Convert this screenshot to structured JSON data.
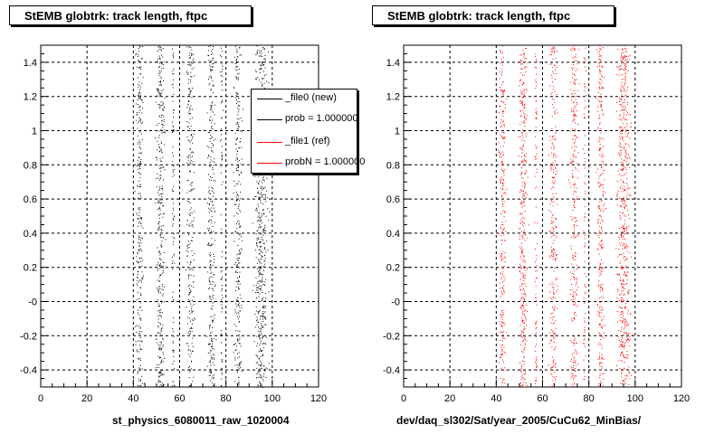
{
  "colors": {
    "file0": "#000000",
    "file1": "#ff0000",
    "grid": "#000000"
  },
  "chart_data": [
    {
      "type": "scatter",
      "title": "StEMB globtrk: track length, ftpc",
      "xlabel": "st_physics_6080011_raw_1020004",
      "ylabel": "",
      "xlim": [
        0,
        120
      ],
      "ylim": [
        -0.5,
        1.5
      ],
      "x_ticks": [
        "0",
        "20",
        "40",
        "60",
        "80",
        "100",
        "120"
      ],
      "y_ticks": [
        "-0.4",
        "-0.2",
        "-0",
        "0.2",
        "0.4",
        "0.6",
        "0.8",
        "1",
        "1.2",
        "1.4"
      ],
      "grid": true,
      "series": [
        {
          "color": "#000000",
          "bands": [
            {
              "x": 42.5,
              "width": 2.2,
              "density": 1.0
            },
            {
              "x": 51.5,
              "width": 2.6,
              "density": 1.4
            },
            {
              "x": 57.0,
              "width": 0.8,
              "density": 0.35
            },
            {
              "x": 64.5,
              "width": 2.4,
              "density": 1.0
            },
            {
              "x": 73.5,
              "width": 2.5,
              "density": 1.1
            },
            {
              "x": 78.0,
              "width": 0.7,
              "density": 0.3
            },
            {
              "x": 85.0,
              "width": 2.4,
              "density": 1.1
            },
            {
              "x": 95.0,
              "width": 4.0,
              "density": 2.2
            }
          ]
        }
      ],
      "legend": {
        "placement": "top-right",
        "entries": [
          {
            "label": "_file0 (new)",
            "color": "#000000"
          },
          {
            "label": "prob = 1.000000",
            "color": "#000000"
          },
          {
            "label": "_file1 (ref)",
            "color": "#ff0000"
          },
          {
            "label": "probN = 1.000000",
            "color": "#ff0000"
          }
        ]
      }
    },
    {
      "type": "scatter",
      "title": "StEMB globtrk: track length, ftpc",
      "xlabel": "dev/daq_sl302/Sat/year_2005/CuCu62_MinBias/",
      "ylabel": "",
      "xlim": [
        0,
        120
      ],
      "ylim": [
        -0.5,
        1.5
      ],
      "x_ticks": [
        "0",
        "20",
        "40",
        "60",
        "80",
        "100",
        "120"
      ],
      "y_ticks": [
        "-0.4",
        "-0.2",
        "-0",
        "0.2",
        "0.4",
        "0.6",
        "0.8",
        "1",
        "1.2",
        "1.4"
      ],
      "grid": true,
      "series": [
        {
          "color": "#ff0000",
          "bands": [
            {
              "x": 42.5,
              "width": 2.2,
              "density": 1.0
            },
            {
              "x": 51.5,
              "width": 2.6,
              "density": 1.4
            },
            {
              "x": 57.0,
              "width": 0.8,
              "density": 0.35
            },
            {
              "x": 64.5,
              "width": 2.4,
              "density": 1.0
            },
            {
              "x": 73.5,
              "width": 2.5,
              "density": 1.1
            },
            {
              "x": 78.0,
              "width": 0.7,
              "density": 0.3
            },
            {
              "x": 85.0,
              "width": 2.4,
              "density": 1.1
            },
            {
              "x": 95.0,
              "width": 4.0,
              "density": 2.2
            }
          ]
        }
      ]
    }
  ]
}
